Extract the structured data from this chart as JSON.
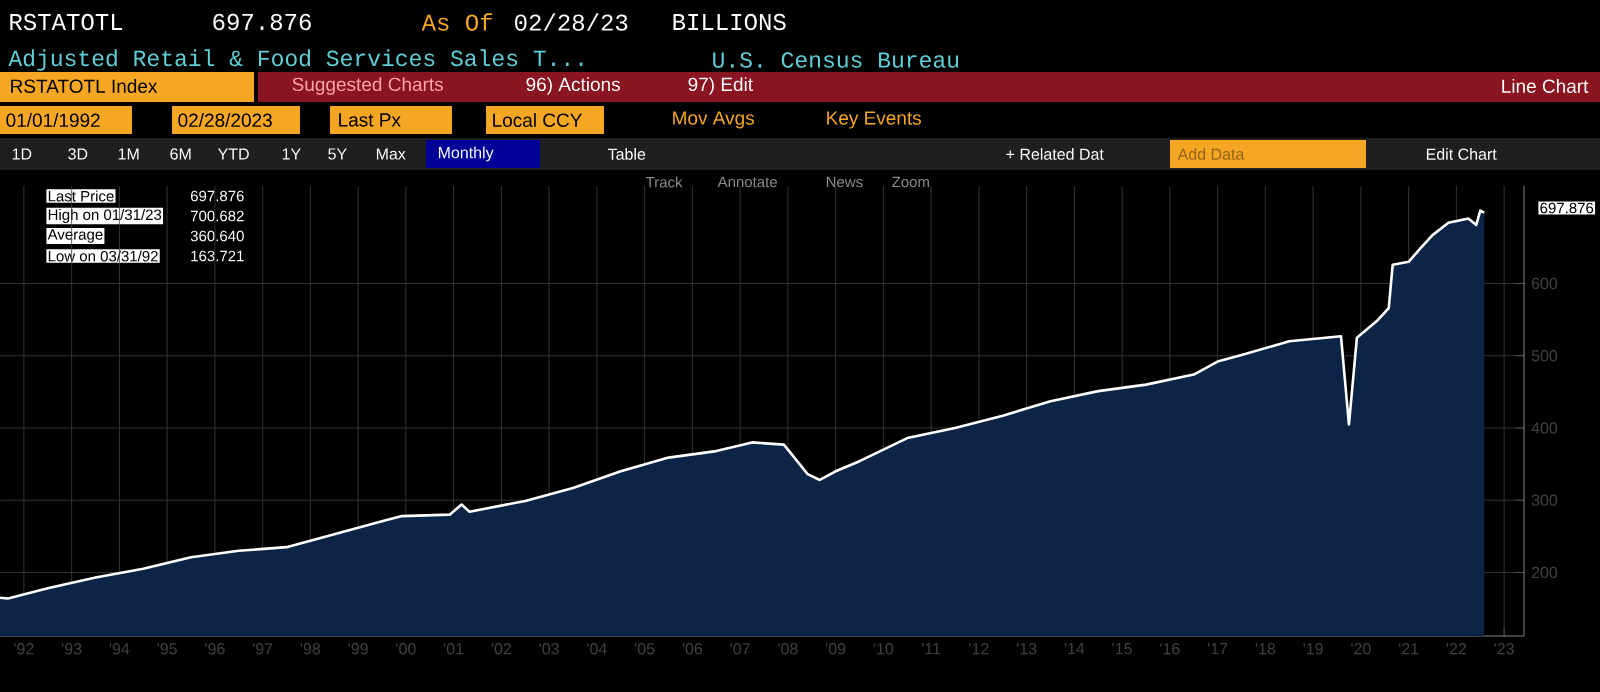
{
  "chart_data": {
    "type": "area",
    "title": "RSTATOTL",
    "subtitle": "Adjusted Retail & Food Services Sales T...",
    "x": [
      "1992-01",
      "1992-03",
      "1993-01",
      "1994-01",
      "1995-01",
      "1996-01",
      "1997-01",
      "1998-01",
      "1999-01",
      "2000-01",
      "2000-06",
      "2001-06",
      "2001-09",
      "2001-11",
      "2003-01",
      "2004-01",
      "2005-01",
      "2006-01",
      "2007-01",
      "2007-10",
      "2008-06",
      "2008-12",
      "2009-03",
      "2009-07",
      "2010-01",
      "2011-01",
      "2012-01",
      "2013-01",
      "2014-01",
      "2015-01",
      "2016-01",
      "2017-01",
      "2017-07",
      "2018-01",
      "2019-01",
      "2020-02",
      "2020-04",
      "2020-06",
      "2020-11",
      "2021-02",
      "2021-03",
      "2021-07",
      "2021-10",
      "2022-01",
      "2022-05",
      "2022-10",
      "2022-12",
      "2023-01",
      "2023-02"
    ],
    "series": [
      {
        "color": "#0c2546",
        "values": [
          165,
          164,
          178,
          193,
          205,
          221,
          230,
          235,
          253,
          271,
          278,
          280,
          294,
          284,
          299,
          317,
          340,
          359,
          368,
          380,
          377,
          336,
          328,
          340,
          354,
          386,
          400,
          417,
          437,
          451,
          460,
          474,
          492,
          501,
          520,
          527,
          405,
          525,
          548,
          566,
          626,
          630,
          649,
          667,
          684,
          690,
          681,
          701,
          698
        ]
      }
    ],
    "xlim": [
      "1992-01",
      "2023-12"
    ],
    "xticks": [
      {
        "value": "1992-07",
        "label": "'92"
      },
      {
        "value": "1993-07",
        "label": "'93"
      },
      {
        "value": "1994-07",
        "label": "'94"
      },
      {
        "value": "1995-07",
        "label": "'95"
      },
      {
        "value": "1996-07",
        "label": "'96"
      },
      {
        "value": "1997-07",
        "label": "'97"
      },
      {
        "value": "1998-07",
        "label": "'98"
      },
      {
        "value": "1999-07",
        "label": "'99"
      },
      {
        "value": "2000-07",
        "label": "'00"
      },
      {
        "value": "2001-07",
        "label": "'01"
      },
      {
        "value": "2002-07",
        "label": "'02"
      },
      {
        "value": "2003-07",
        "label": "'03"
      },
      {
        "value": "2004-07",
        "label": "'04"
      },
      {
        "value": "2005-07",
        "label": "'05"
      },
      {
        "value": "2006-07",
        "label": "'06"
      },
      {
        "value": "2007-07",
        "label": "'07"
      },
      {
        "value": "2008-07",
        "label": "'08"
      },
      {
        "value": "2009-07",
        "label": "'09"
      },
      {
        "value": "2010-07",
        "label": "'10"
      },
      {
        "value": "2011-07",
        "label": "'11"
      },
      {
        "value": "2012-07",
        "label": "'12"
      },
      {
        "value": "2013-07",
        "label": "'13"
      },
      {
        "value": "2014-07",
        "label": "'14"
      },
      {
        "value": "2015-07",
        "label": "'15"
      },
      {
        "value": "2016-07",
        "label": "'16"
      },
      {
        "value": "2017-07",
        "label": "'17"
      },
      {
        "value": "2018-07",
        "label": "'18"
      },
      {
        "value": "2019-07",
        "label": "'19"
      },
      {
        "value": "2020-07",
        "label": "'20"
      },
      {
        "value": "2021-07",
        "label": "'21"
      },
      {
        "value": "2022-07",
        "label": "'22"
      },
      {
        "value": "2023-07",
        "label": "'23"
      }
    ],
    "ylim": [
      112,
      735
    ],
    "yticks": [
      200,
      300,
      400,
      500,
      600
    ],
    "grid": true,
    "annotations": [
      "697.876",
      "As Of",
      "02/28/23",
      "BILLIONS",
      "U.S. Census Bureau",
      "RSTATOTL Index",
      "Suggested Charts",
      "96) Actions",
      "97) Edit",
      "Line Chart",
      "01/01/1992",
      "02/28/2023",
      "Last Px",
      "Local CCY",
      "Mov Avgs",
      "Key Events",
      "1D",
      "3D",
      "1M",
      "6M",
      "YTD",
      "1Y",
      "5Y",
      "Max",
      "Monthly",
      "Table",
      "+ Related Dat",
      "Add Data",
      "Edit Chart",
      "Track",
      "Annotate",
      "News",
      "Zoom",
      "Last Price",
      "697.876",
      "High on 01/31/23",
      "700.682",
      "Average",
      "360.640",
      "Low on 03/31/92",
      "163.721",
      "697.876"
    ]
  }
}
